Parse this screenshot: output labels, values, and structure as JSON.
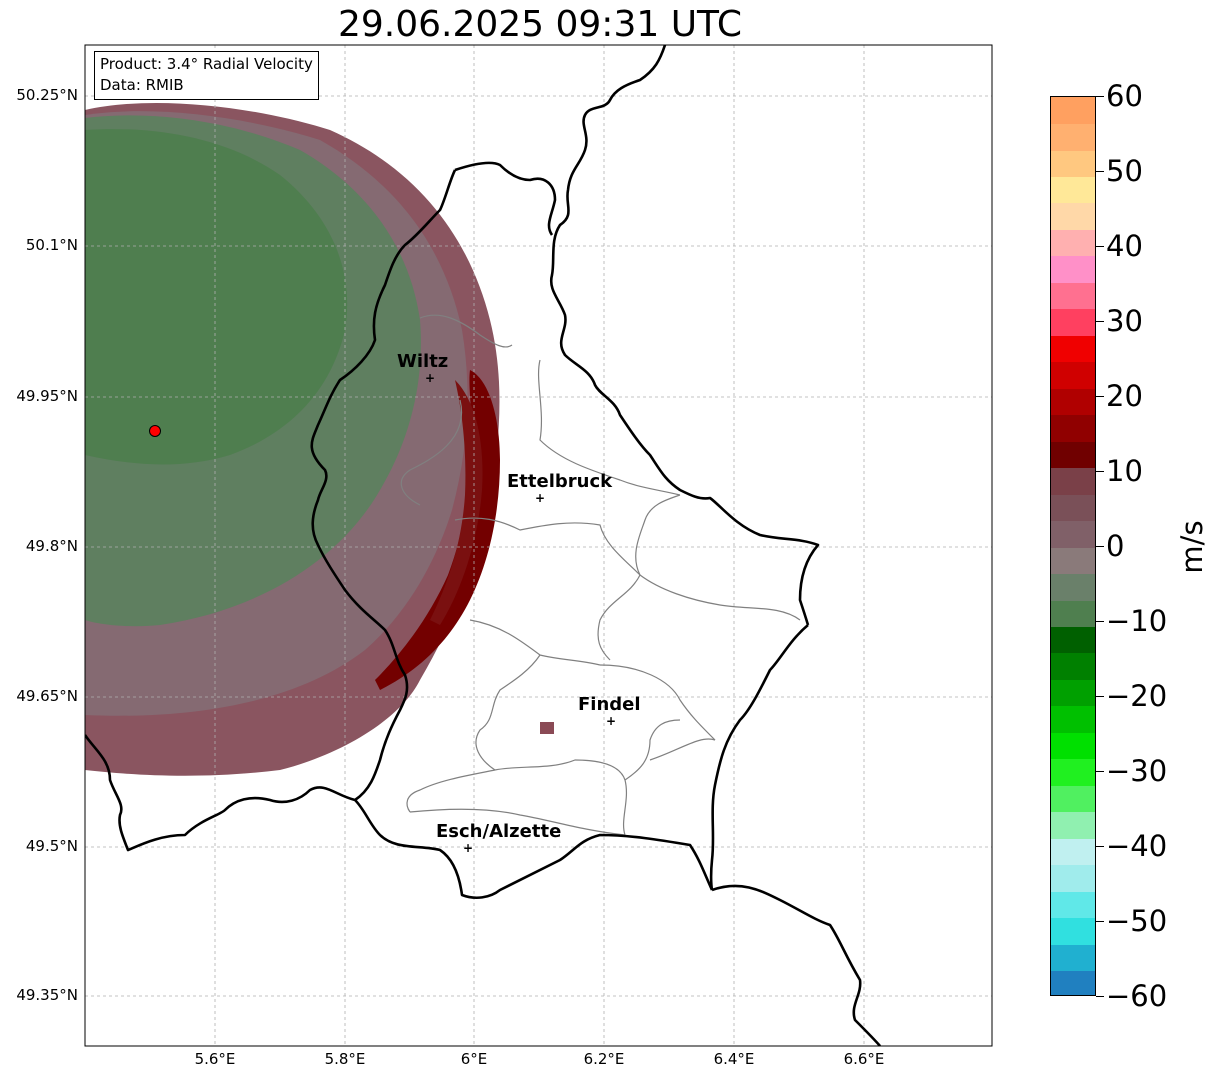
{
  "title": "29.06.2025 09:31 UTC",
  "info": {
    "product": "Product: 3.4° Radial Velocity",
    "data": "Data: RMIB"
  },
  "axes": {
    "lat_labels": [
      "50.25°N",
      "50.1°N",
      "49.95°N",
      "49.8°N",
      "49.65°N",
      "49.5°N",
      "49.35°N"
    ],
    "lon_labels": [
      "5.6°E",
      "5.8°E",
      "6°E",
      "6.2°E",
      "6.4°E",
      "6.6°E"
    ],
    "gridlines": true
  },
  "cities": [
    {
      "name": "Wiltz"
    },
    {
      "name": "Ettelbruck"
    },
    {
      "name": "Findel"
    },
    {
      "name": "Esch/Alzette"
    }
  ],
  "colorbar": {
    "unit": "m/s",
    "tick_labels": [
      "60",
      "50",
      "40",
      "30",
      "20",
      "10",
      "0",
      "−10",
      "−20",
      "−30",
      "−40",
      "−50",
      "−60"
    ],
    "range": [
      -60,
      60
    ],
    "colors": [
      "#2080c0",
      "#20b0d0",
      "#30e0e0",
      "#60e8e8",
      "#a0ecec",
      "#c0f0f0",
      "#90f0b0",
      "#50f060",
      "#20f020",
      "#00e000",
      "#00c000",
      "#00a000",
      "#008000",
      "#006000",
      "#4f7f4f",
      "#6a806a",
      "#8a7a7a",
      "#806068",
      "#7a5058",
      "#7a4048",
      "#700000",
      "#900000",
      "#b00000",
      "#d00000",
      "#f00000",
      "#ff4060",
      "#ff7090",
      "#ff90c8",
      "#ffb0b0",
      "#ffd8a8",
      "#ffe898",
      "#ffc880",
      "#ffb070",
      "#ffa060"
    ]
  },
  "radar_site_color": "#ff0000"
}
